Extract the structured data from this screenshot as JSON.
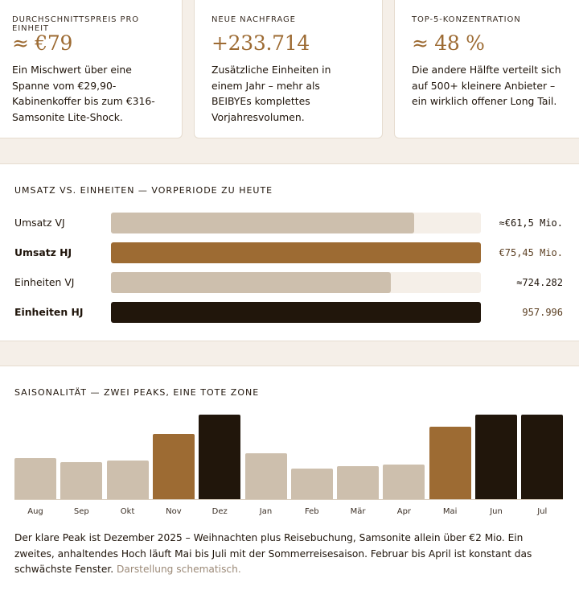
{
  "kpis": [
    {
      "label": "DURCHSCHNITTSPREIS PRO EINHEIT",
      "value": "≈ €79",
      "desc": "Ein Mischwert über eine Spanne vom €29,90-Kabinenkoffer bis zum €316-Samsonite Lite-Shock."
    },
    {
      "label": "NEUE NACHFRAGE",
      "value": "+233.714",
      "desc": "Zusätzliche Einheiten in einem Jahr – mehr als BEIBYEs komplettes Vorjahresvolumen."
    },
    {
      "label": "TOP-5-KONZENTRATION",
      "value": "≈ 48 %",
      "desc": "Die andere Hälfte verteilt sich auf 500+ kleinere Anbieter – ein wirklich offener Long Tail."
    }
  ],
  "comparison": {
    "title": "UMSATZ VS. EINHEITEN — VORPERIODE ZU HEUTE",
    "rows": [
      {
        "label": "Umsatz VJ",
        "value_text": "≈€61,5 Mio.",
        "fraction": 0.82,
        "color": "#cdbfad",
        "bold": false
      },
      {
        "label": "Umsatz HJ",
        "value_text": "€75,45 Mio.",
        "fraction": 1.0,
        "color": "#9d6b33",
        "bold": true
      },
      {
        "label": "Einheiten VJ",
        "value_text": "≈724.282",
        "fraction": 0.757,
        "color": "#cdbfad",
        "bold": false
      },
      {
        "label": "Einheiten HJ",
        "value_text": "957.996",
        "fraction": 1.0,
        "color": "#21160b",
        "bold": true
      }
    ]
  },
  "chart_data": {
    "type": "bar",
    "title": "SAISONALITÄT — ZWEI PEAKS, EINE TOTE ZONE",
    "categories": [
      "Aug",
      "Sep",
      "Okt",
      "Nov",
      "Dez",
      "Jan",
      "Feb",
      "Mär",
      "Apr",
      "Mai",
      "Jun",
      "Jul"
    ],
    "values": [
      49,
      44,
      46,
      77,
      100,
      54,
      36,
      39,
      41,
      86,
      100,
      100
    ],
    "ylim": [
      0,
      100
    ],
    "colors": {
      "low": "#cdbfad",
      "high": "#9d6b33",
      "peak": "#21160b"
    },
    "color_keys": [
      "low",
      "low",
      "low",
      "high",
      "peak",
      "low",
      "low",
      "low",
      "low",
      "high",
      "peak",
      "peak"
    ],
    "grid": false
  },
  "note": {
    "text": "Der klare Peak ist Dezember 2025 – Weihnachten plus Reisebuchung, Samsonite allein über €2 Mio. Ein zweites, anhaltendes Hoch läuft Mai bis Juli mit der Sommerreisesaison. Februar bis April ist konstant das schwächste Fenster.",
    "muted": "Darstellung schematisch."
  }
}
